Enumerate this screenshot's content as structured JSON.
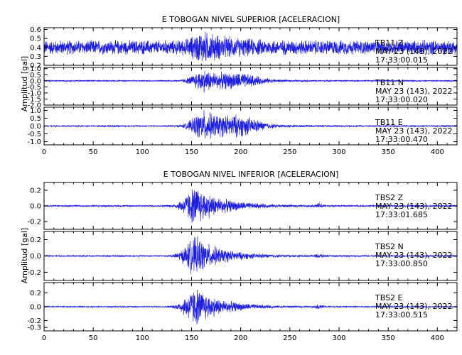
{
  "colors": {
    "trace": "#1f1fe0",
    "axis": "#000000",
    "background": "#ffffff"
  },
  "chart_data": [
    {
      "type": "line",
      "title": "E TOBOGAN NIVEL SUPERIOR [ACELERACION]",
      "ylabel": "Amplitud [gal]",
      "xlim": [
        0,
        420
      ],
      "xticks": [
        "0",
        "50",
        "100",
        "150",
        "200",
        "250",
        "300",
        "350",
        "400"
      ],
      "grid": false,
      "peak_time": 163,
      "panels": [
        {
          "station": "TB11",
          "component": "Z",
          "date": "MAY 23 (143), 2022",
          "time": "17:33:00.015",
          "ylim": [
            0.2,
            0.62
          ],
          "yticks": [
            "0.6",
            "0.5",
            "0.4",
            "0.3",
            "0.2"
          ],
          "baseline": 0.4,
          "noise_amplitude": 0.09,
          "event_amplitude": 0.12
        },
        {
          "station": "TB11",
          "component": "N",
          "date": "MAY 23 (143), 2022",
          "time": "17:33:00.020",
          "ylim": [
            -2.0,
            1.1
          ],
          "yticks": [
            "1.0",
            "0.5",
            "0.0",
            "-0.5",
            "-1.0",
            "-1.5",
            "-2.0"
          ],
          "baseline": 0.0,
          "noise_amplitude": 0.06,
          "event_amplitude": 1.0
        },
        {
          "station": "TB11",
          "component": "E",
          "date": "MAY 23 (143), 2022",
          "time": "17:33:00.470",
          "ylim": [
            -1.2,
            1.2
          ],
          "yticks": [
            "1.0",
            "0.5",
            "0.0",
            "-0.5",
            "-1.0"
          ],
          "baseline": 0.0,
          "noise_amplitude": 0.05,
          "event_amplitude": 1.05
        }
      ]
    },
    {
      "type": "line",
      "title": "E TOBOGAN NIVEL INFERIOR [ACELERACION]",
      "ylabel": "Amplitud [gal]",
      "xlim": [
        0,
        420
      ],
      "xticks": [
        "0",
        "50",
        "100",
        "150",
        "200",
        "250",
        "300",
        "350",
        "400"
      ],
      "grid": false,
      "peak_time": 155,
      "panels": [
        {
          "station": "TBS2",
          "component": "Z",
          "date": "MAY 23 (143), 2022",
          "time": "17:33:01.685",
          "ylim": [
            -0.3,
            0.3
          ],
          "yticks": [
            "0.2",
            "0.0",
            "-0.2"
          ],
          "baseline": 0.0,
          "noise_amplitude": 0.012,
          "event_amplitude": 0.27
        },
        {
          "station": "TBS2",
          "component": "N",
          "date": "MAY 23 (143), 2022",
          "time": "17:33:00.850",
          "ylim": [
            -0.3,
            0.3
          ],
          "yticks": [
            "0.2",
            "0.0",
            "-0.2"
          ],
          "baseline": 0.0,
          "noise_amplitude": 0.01,
          "event_amplitude": 0.25
        },
        {
          "station": "TBS2",
          "component": "E",
          "date": "MAY 23 (143), 2022",
          "time": "17:33:00.515",
          "ylim": [
            -0.35,
            0.35
          ],
          "yticks": [
            "0.2",
            "0.0",
            "-0.2",
            "-0.3"
          ],
          "baseline": 0.0,
          "noise_amplitude": 0.01,
          "event_amplitude": 0.3
        }
      ]
    }
  ]
}
